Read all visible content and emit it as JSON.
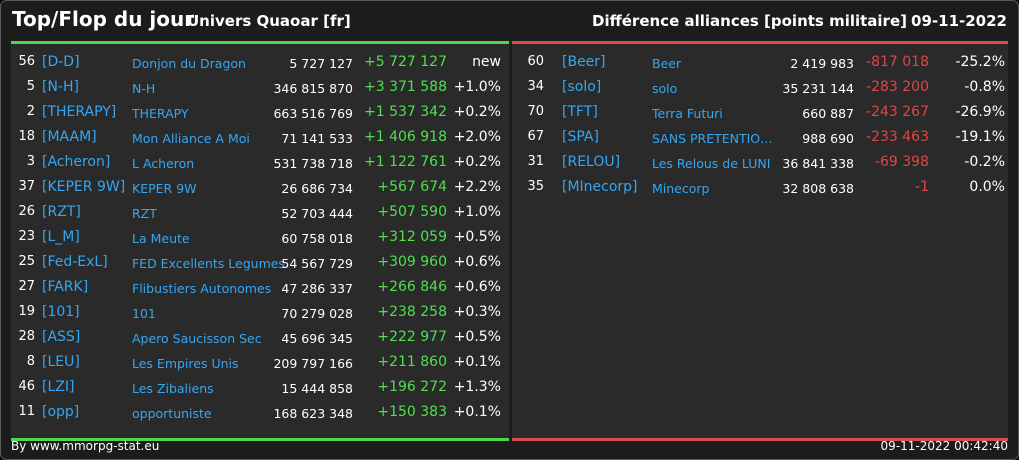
{
  "header": {
    "title": "Top/Flop du jour",
    "universe": "Univers Quaoar [fr]",
    "category": "Différence alliances [points militaire]",
    "date": "09-11-2022"
  },
  "colors": {
    "top_accent": "#4ad94a",
    "flop_accent": "#d94a4a",
    "link_blue": "#35a7f2",
    "positive": "#4ee04e",
    "negative": "#e04545"
  },
  "top": [
    {
      "rank": "56",
      "tag": "[D-D]",
      "name": "Donjon du Dragon",
      "points": "5 727 127",
      "diff": "+5 727 127",
      "pct": "new"
    },
    {
      "rank": "5",
      "tag": "[N-H]",
      "name": "N-H",
      "points": "346 815 870",
      "diff": "+3 371 588",
      "pct": "+1.0%"
    },
    {
      "rank": "2",
      "tag": "[THERAPY]",
      "name": "THERAPY",
      "points": "663 516 769",
      "diff": "+1 537 342",
      "pct": "+0.2%"
    },
    {
      "rank": "18",
      "tag": "[MAAM]",
      "name": "Mon Alliance A Moi",
      "points": "71 141 533",
      "diff": "+1 406 918",
      "pct": "+2.0%"
    },
    {
      "rank": "3",
      "tag": "[Acheron]",
      "name": "L Acheron",
      "points": "531 738 718",
      "diff": "+1 122 761",
      "pct": "+0.2%"
    },
    {
      "rank": "37",
      "tag": "[KEPER 9W]",
      "name": "KEPER 9W",
      "points": "26 686 734",
      "diff": "+567 674",
      "pct": "+2.2%"
    },
    {
      "rank": "26",
      "tag": "[RZT]",
      "name": "RZT",
      "points": "52 703 444",
      "diff": "+507 590",
      "pct": "+1.0%"
    },
    {
      "rank": "23",
      "tag": "[L_M]",
      "name": "La Meute",
      "points": "60 758 018",
      "diff": "+312 059",
      "pct": "+0.5%"
    },
    {
      "rank": "25",
      "tag": "[Fed-ExL]",
      "name": "FED Excellents Legumes",
      "points": "54 567 729",
      "diff": "+309 960",
      "pct": "+0.6%"
    },
    {
      "rank": "27",
      "tag": "[FARK]",
      "name": "Flibustiers Autonomes",
      "points": "47 286 337",
      "diff": "+266 846",
      "pct": "+0.6%"
    },
    {
      "rank": "19",
      "tag": "[101]",
      "name": "101",
      "points": "70 279 028",
      "diff": "+238 258",
      "pct": "+0.3%"
    },
    {
      "rank": "28",
      "tag": "[ASS]",
      "name": "Apero Saucisson Sec",
      "points": "45 696 345",
      "diff": "+222 977",
      "pct": "+0.5%"
    },
    {
      "rank": "8",
      "tag": "[LEU]",
      "name": "Les Empires Unis",
      "points": "209 797 166",
      "diff": "+211 860",
      "pct": "+0.1%"
    },
    {
      "rank": "46",
      "tag": "[LZI]",
      "name": "Les Zibaliens",
      "points": "15 444 858",
      "diff": "+196 272",
      "pct": "+1.3%"
    },
    {
      "rank": "11",
      "tag": "[opp]",
      "name": "opportuniste",
      "points": "168 623 348",
      "diff": "+150 383",
      "pct": "+0.1%"
    }
  ],
  "flop": [
    {
      "rank": "60",
      "tag": "[Beer]",
      "name": "Beer",
      "points": "2 419 983",
      "diff": "-817 018",
      "pct": "-25.2%"
    },
    {
      "rank": "34",
      "tag": "[solo]",
      "name": "solo",
      "points": "35 231 144",
      "diff": "-283 200",
      "pct": "-0.8%"
    },
    {
      "rank": "70",
      "tag": "[TFT]",
      "name": "Terra Futuri",
      "points": "660 887",
      "diff": "-243 267",
      "pct": "-26.9%"
    },
    {
      "rank": "67",
      "tag": "[SPA]",
      "name": "SANS PRETENTIO…",
      "points": "988 690",
      "diff": "-233 463",
      "pct": "-19.1%"
    },
    {
      "rank": "31",
      "tag": "[RELOU]",
      "name": "Les Relous de LUNI",
      "points": "36 841 338",
      "diff": "-69 398",
      "pct": "-0.2%"
    },
    {
      "rank": "35",
      "tag": "[MInecorp]",
      "name": "Minecorp",
      "points": "32 808 638",
      "diff": "-1",
      "pct": "0.0%"
    }
  ],
  "footer": {
    "credit": "By www.mmorpg-stat.eu",
    "timestamp": "09-11-2022 00:42:40"
  }
}
